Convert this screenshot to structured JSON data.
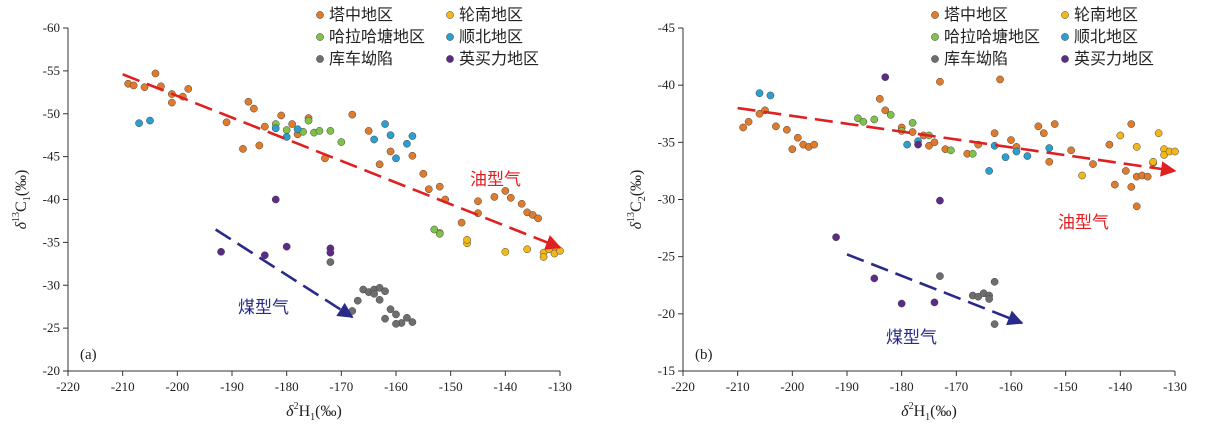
{
  "colors": {
    "tazhong": "#e07b2c",
    "lunnan": "#f2b81b",
    "halahatang": "#7fc24a",
    "shunbei": "#2a9fd0",
    "kuche": "#6e6e6e",
    "yingmaili": "#5b2b86",
    "oil_line": "#e02020",
    "coal_line": "#2a2a8a"
  },
  "chart_data": [
    {
      "type": "scatter",
      "panel_label": "(a)",
      "xlabel_main": "δ",
      "xlabel_sup": "2",
      "xlabel_rest": "H",
      "xlabel_sub": "1",
      "xlabel_unit": "(‰)",
      "ylabel_main": "δ",
      "ylabel_sup": "13",
      "ylabel_rest": "C",
      "ylabel_sub": "1",
      "ylabel_unit": "(‰)",
      "xlim": [
        -220,
        -130
      ],
      "ylim": [
        -20,
        -60
      ],
      "xticks": [
        -220,
        -210,
        -200,
        -190,
        -180,
        -170,
        -160,
        -150,
        -140,
        -130
      ],
      "yticks": [
        -20,
        -25,
        -30,
        -35,
        -40,
        -45,
        -50,
        -55,
        -60
      ],
      "legend": [
        {
          "label": "塔中地区",
          "color_key": "tazhong"
        },
        {
          "label": "轮南地区",
          "color_key": "lunnan"
        },
        {
          "label": "哈拉哈塘地区",
          "color_key": "halahatang"
        },
        {
          "label": "顺北地区",
          "color_key": "shunbei"
        },
        {
          "label": "库车坳陷",
          "color_key": "kuche"
        },
        {
          "label": "英买力地区",
          "color_key": "yingmaili"
        }
      ],
      "oil_trend": {
        "label": "油型气",
        "from": [
          -210,
          -54.6
        ],
        "to": [
          -130,
          -34.4
        ]
      },
      "coal_trend": {
        "label": "煤型气",
        "from": [
          -193,
          -36.5
        ],
        "to": [
          -168,
          -26.3
        ]
      },
      "series": [
        {
          "name": "塔中地区",
          "color_key": "tazhong",
          "points": [
            [
              -209,
              -53.5
            ],
            [
              -208,
              -53.3
            ],
            [
              -206,
              -53.1
            ],
            [
              -204,
              -54.7
            ],
            [
              -203,
              -53.2
            ],
            [
              -201,
              -52.3
            ],
            [
              -201,
              -51.3
            ],
            [
              -199,
              -52.0
            ],
            [
              -198,
              -52.9
            ],
            [
              -191,
              -49.0
            ],
            [
              -188,
              -45.9
            ],
            [
              -187,
              -51.4
            ],
            [
              -186,
              -50.6
            ],
            [
              -185,
              -46.3
            ],
            [
              -184,
              -48.5
            ],
            [
              -181,
              -49.8
            ],
            [
              -179,
              -48.8
            ],
            [
              -178,
              -47.6
            ],
            [
              -176,
              -49.5
            ],
            [
              -173,
              -44.8
            ],
            [
              -168,
              -49.9
            ],
            [
              -165,
              -48.0
            ],
            [
              -163,
              -44.1
            ],
            [
              -161,
              -45.6
            ],
            [
              -157,
              -45.1
            ],
            [
              -155,
              -43.0
            ],
            [
              -154,
              -41.2
            ],
            [
              -152,
              -41.5
            ],
            [
              -151,
              -40.0
            ],
            [
              -148,
              -37.3
            ],
            [
              -145,
              -38.4
            ],
            [
              -145,
              -39.8
            ],
            [
              -142,
              -40.3
            ],
            [
              -140,
              -41.0
            ],
            [
              -139,
              -40.2
            ],
            [
              -137,
              -39.5
            ],
            [
              -136,
              -38.5
            ],
            [
              -135,
              -38.2
            ],
            [
              -134,
              -37.8
            ]
          ]
        },
        {
          "name": "轮南地区",
          "color_key": "lunnan",
          "points": [
            [
              -152,
              -36.1
            ],
            [
              -147,
              -34.9
            ],
            [
              -147,
              -35.3
            ],
            [
              -140,
              -33.9
            ],
            [
              -136,
              -34.2
            ],
            [
              -133,
              -33.8
            ],
            [
              -133,
              -33.3
            ],
            [
              -132,
              -34.2
            ],
            [
              -131,
              -34.5
            ],
            [
              -131,
              -33.7
            ],
            [
              -130,
              -34.0
            ]
          ]
        },
        {
          "name": "哈拉哈塘地区",
          "color_key": "halahatang",
          "points": [
            [
              -182,
              -48.8
            ],
            [
              -180,
              -48.1
            ],
            [
              -177,
              -47.9
            ],
            [
              -175,
              -47.8
            ],
            [
              -174,
              -48.0
            ],
            [
              -176,
              -49.2
            ],
            [
              -172,
              -48.0
            ],
            [
              -170,
              -46.7
            ],
            [
              -153,
              -36.5
            ],
            [
              -152,
              -36.0
            ]
          ]
        },
        {
          "name": "顺北地区",
          "color_key": "shunbei",
          "points": [
            [
              -207,
              -48.9
            ],
            [
              -205,
              -49.2
            ],
            [
              -182,
              -48.3
            ],
            [
              -180,
              -47.3
            ],
            [
              -178,
              -48.2
            ],
            [
              -164,
              -47.0
            ],
            [
              -162,
              -48.8
            ],
            [
              -161,
              -47.5
            ],
            [
              -160,
              -44.8
            ],
            [
              -158,
              -46.5
            ],
            [
              -157,
              -47.4
            ]
          ]
        },
        {
          "name": "库车坳陷",
          "color_key": "kuche",
          "points": [
            [
              -172,
              -32.7
            ],
            [
              -168,
              -27.0
            ],
            [
              -167,
              -28.2
            ],
            [
              -166,
              -29.5
            ],
            [
              -165,
              -29.2
            ],
            [
              -164,
              -29.5
            ],
            [
              -163,
              -29.7
            ],
            [
              -164,
              -29.0
            ],
            [
              -163,
              -28.3
            ],
            [
              -162,
              -29.3
            ],
            [
              -161,
              -27.2
            ],
            [
              -162,
              -26.1
            ],
            [
              -160,
              -26.6
            ],
            [
              -159,
              -25.6
            ],
            [
              -158,
              -26.2
            ],
            [
              -157,
              -25.7
            ],
            [
              -160,
              -25.5
            ]
          ]
        },
        {
          "name": "英买力地区",
          "color_key": "yingmaili",
          "points": [
            [
              -192,
              -33.9
            ],
            [
              -184,
              -33.5
            ],
            [
              -182,
              -40.0
            ],
            [
              -180,
              -34.5
            ],
            [
              -172,
              -34.3
            ],
            [
              -172,
              -33.8
            ]
          ]
        }
      ]
    },
    {
      "type": "scatter",
      "panel_label": "(b)",
      "xlabel_main": "δ",
      "xlabel_sup": "2",
      "xlabel_rest": "H",
      "xlabel_sub": "1",
      "xlabel_unit": "(‰)",
      "ylabel_main": "δ",
      "ylabel_sup": "13",
      "ylabel_rest": "C",
      "ylabel_sub": "2",
      "ylabel_unit": "(‰)",
      "xlim": [
        -220,
        -130
      ],
      "ylim": [
        -15,
        -45
      ],
      "xticks": [
        -220,
        -210,
        -200,
        -190,
        -180,
        -170,
        -160,
        -150,
        -140,
        -130
      ],
      "yticks": [
        -15,
        -20,
        -25,
        -30,
        -35,
        -40,
        -45
      ],
      "legend": [
        {
          "label": "塔中地区",
          "color_key": "tazhong"
        },
        {
          "label": "轮南地区",
          "color_key": "lunnan"
        },
        {
          "label": "哈拉哈塘地区",
          "color_key": "halahatang"
        },
        {
          "label": "顺北地区",
          "color_key": "shunbei"
        },
        {
          "label": "库车坳陷",
          "color_key": "kuche"
        },
        {
          "label": "英买力地区",
          "color_key": "yingmaili"
        }
      ],
      "oil_trend": {
        "label": "油型气",
        "from": [
          -210,
          -38.0
        ],
        "to": [
          -130,
          -32.5
        ]
      },
      "coal_trend": {
        "label": "煤型气",
        "from": [
          -190,
          -25.2
        ],
        "to": [
          -158,
          -19.2
        ]
      },
      "series": [
        {
          "name": "塔中地区",
          "color_key": "tazhong",
          "points": [
            [
              -209,
              -36.3
            ],
            [
              -208,
              -36.8
            ],
            [
              -206,
              -37.5
            ],
            [
              -205,
              -37.8
            ],
            [
              -203,
              -36.4
            ],
            [
              -201,
              -36.1
            ],
            [
              -200,
              -34.4
            ],
            [
              -199,
              -35.4
            ],
            [
              -198,
              -34.8
            ],
            [
              -197,
              -34.6
            ],
            [
              -196,
              -34.8
            ],
            [
              -184,
              -38.8
            ],
            [
              -183,
              -37.8
            ],
            [
              -180,
              -36.3
            ],
            [
              -178,
              -35.9
            ],
            [
              -176,
              -35.6
            ],
            [
              -175,
              -34.7
            ],
            [
              -174,
              -35.0
            ],
            [
              -173,
              -40.3
            ],
            [
              -172,
              -34.4
            ],
            [
              -168,
              -34.0
            ],
            [
              -166,
              -34.8
            ],
            [
              -163,
              -35.8
            ],
            [
              -162,
              -40.5
            ],
            [
              -160,
              -35.2
            ],
            [
              -159,
              -34.6
            ],
            [
              -155,
              -36.4
            ],
            [
              -154,
              -35.8
            ],
            [
              -153,
              -33.3
            ],
            [
              -152,
              -36.6
            ],
            [
              -149,
              -34.3
            ],
            [
              -145,
              -33.1
            ],
            [
              -142,
              -34.8
            ],
            [
              -141,
              -31.3
            ],
            [
              -139,
              -32.5
            ],
            [
              -138,
              -31.1
            ],
            [
              -138,
              -36.6
            ],
            [
              -137,
              -29.4
            ],
            [
              -137,
              -32.0
            ],
            [
              -136,
              -32.1
            ],
            [
              -135,
              -32.0
            ],
            [
              -134,
              -33.2
            ]
          ]
        },
        {
          "name": "轮南地区",
          "color_key": "lunnan",
          "points": [
            [
              -147,
              -32.1
            ],
            [
              -140,
              -35.6
            ],
            [
              -137,
              -34.6
            ],
            [
              -134,
              -33.3
            ],
            [
              -133,
              -35.8
            ],
            [
              -132,
              -34.4
            ],
            [
              -132,
              -33.9
            ],
            [
              -131,
              -34.2
            ],
            [
              -130,
              -34.2
            ]
          ]
        },
        {
          "name": "哈拉哈塘地区",
          "color_key": "halahatang",
          "points": [
            [
              -188,
              -37.1
            ],
            [
              -187,
              -36.8
            ],
            [
              -185,
              -37.0
            ],
            [
              -182,
              -37.4
            ],
            [
              -180,
              -36.0
            ],
            [
              -178,
              -36.7
            ],
            [
              -175,
              -35.6
            ],
            [
              -171,
              -34.3
            ],
            [
              -167,
              -34.0
            ]
          ]
        },
        {
          "name": "顺北地区",
          "color_key": "shunbei",
          "points": [
            [
              -206,
              -39.3
            ],
            [
              -204,
              -39.1
            ],
            [
              -179,
              -34.8
            ],
            [
              -177,
              -35.1
            ],
            [
              -164,
              -32.5
            ],
            [
              -163,
              -34.7
            ],
            [
              -161,
              -33.7
            ],
            [
              -159,
              -34.2
            ],
            [
              -157,
              -33.8
            ],
            [
              -153,
              -34.5
            ]
          ]
        },
        {
          "name": "库车坳陷",
          "color_key": "kuche",
          "points": [
            [
              -173,
              -23.3
            ],
            [
              -167,
              -21.6
            ],
            [
              -166,
              -21.5
            ],
            [
              -165,
              -21.8
            ],
            [
              -164,
              -21.6
            ],
            [
              -163,
              -22.8
            ],
            [
              -164,
              -21.3
            ],
            [
              -163,
              -19.1
            ]
          ]
        },
        {
          "name": "英买力地区",
          "color_key": "yingmaili",
          "points": [
            [
              -192,
              -26.7
            ],
            [
              -185,
              -23.1
            ],
            [
              -183,
              -40.7
            ],
            [
              -180,
              -20.9
            ],
            [
              -177,
              -34.8
            ],
            [
              -174,
              -21.0
            ],
            [
              -173,
              -29.9
            ]
          ]
        }
      ]
    }
  ]
}
